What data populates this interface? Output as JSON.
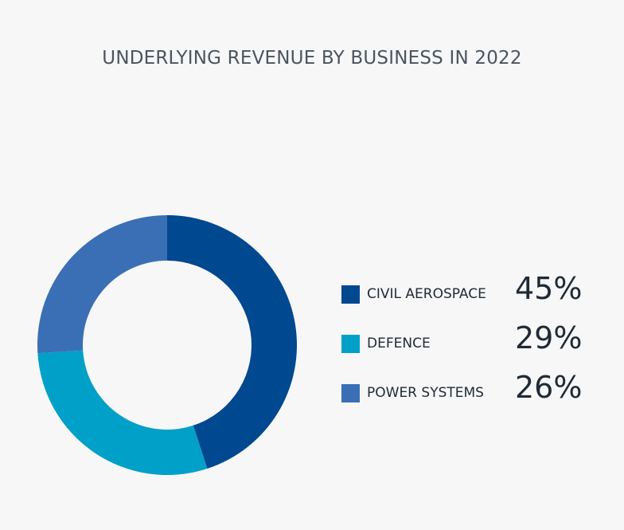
{
  "chart_data": {
    "type": "pie",
    "title": "UNDERLYING REVENUE BY BUSINESS IN 2022",
    "categories": [
      "CIVIL AEROSPACE",
      "DEFENCE",
      "POWER SYSTEMS"
    ],
    "values": [
      45,
      29,
      26
    ],
    "value_labels": [
      "45%",
      "29%",
      "26%"
    ],
    "colors": [
      "#004890",
      "#00a0c8",
      "#3a6fb5"
    ],
    "legend_placement": "right",
    "style": "donut"
  }
}
